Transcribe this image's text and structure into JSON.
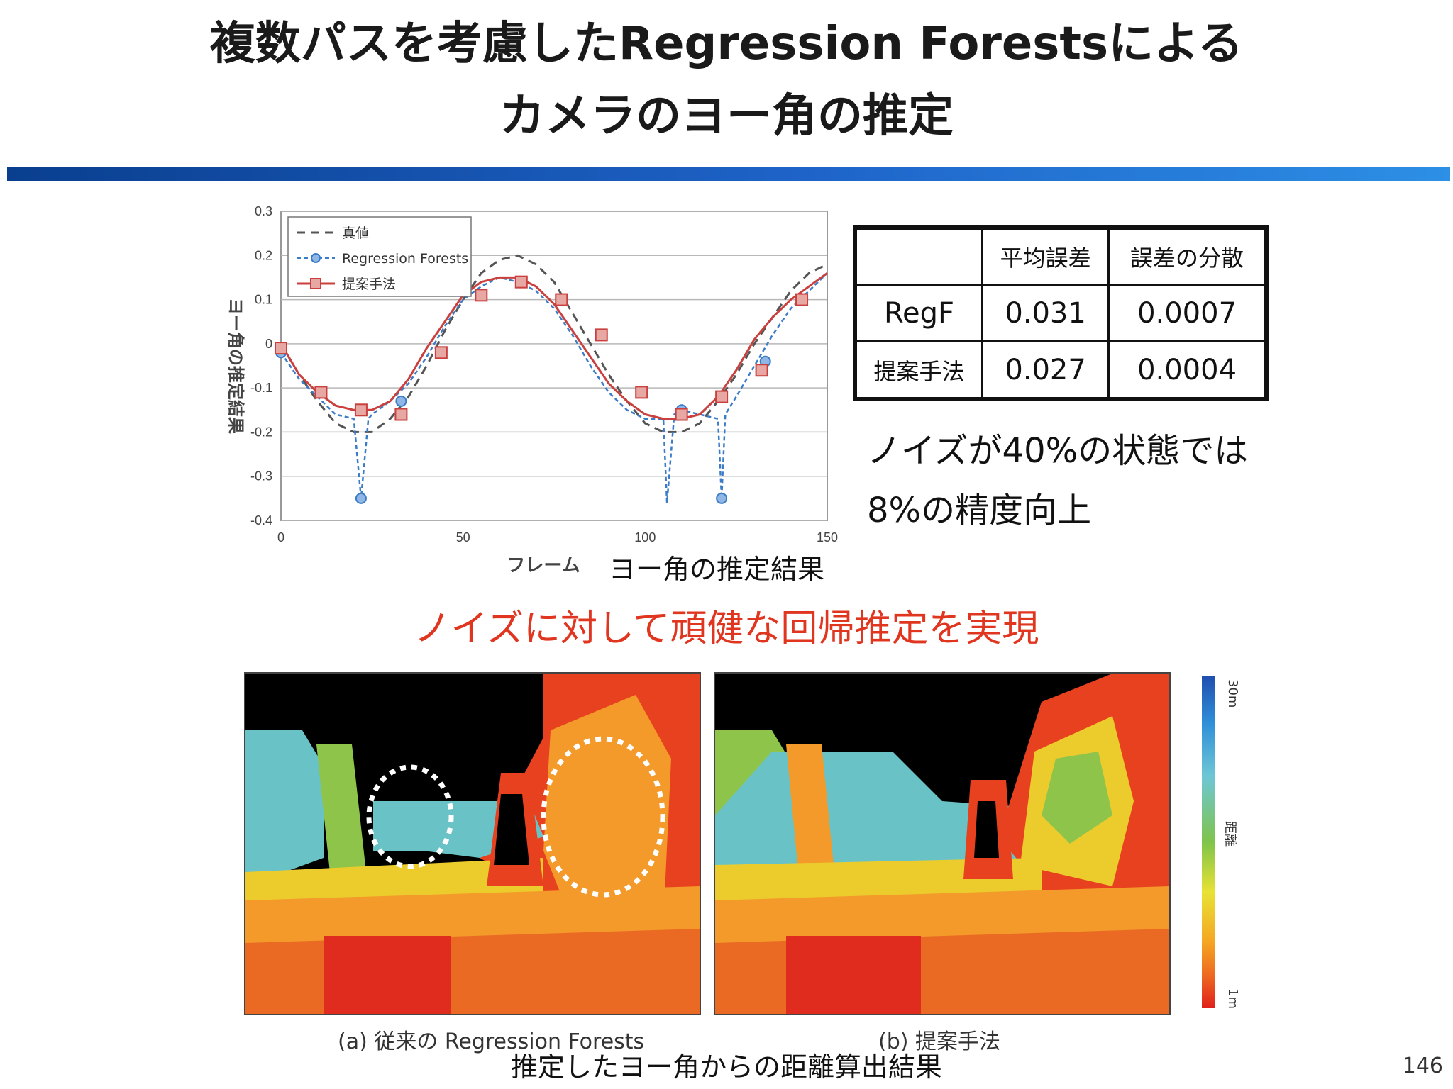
{
  "slide": {
    "title_line1": "複数パスを考慮したRegression Forestsによる",
    "title_line2": "カメラのヨー角の推定",
    "page_number": "146",
    "emphasis": "ノイズに対して頑健な回帰推定を実現",
    "chart_caption": "ヨー角の推定結果",
    "image_caption": "推定したヨー角からの距離算出結果",
    "note_line1": "ノイズが40%の状態では",
    "note_line2": "8%の精度向上"
  },
  "table": {
    "headers": [
      "",
      "平均誤差",
      "誤差の分散"
    ],
    "rows": [
      {
        "method": "RegF",
        "mean_error": "0.031",
        "variance": "0.0007"
      },
      {
        "method": "提案手法",
        "mean_error": "0.027",
        "variance": "0.0004"
      }
    ]
  },
  "depth_images": {
    "left_label": "(a) 従来の Regression Forests",
    "right_label": "(b) 提案手法",
    "colorbar_top": "30m",
    "colorbar_mid": "距離",
    "colorbar_bottom": "1m"
  },
  "chart_data": {
    "type": "line",
    "xlabel": "フレーム",
    "ylabel": "ヨー角の推定結果",
    "xlim": [
      0,
      150
    ],
    "ylim": [
      -0.4,
      0.3
    ],
    "xticks": [
      "0",
      "50",
      "100",
      "150"
    ],
    "yticks": [
      "0.3",
      "0.2",
      "0.1",
      "0",
      "-0.1",
      "-0.2",
      "-0.3",
      "-0.4"
    ],
    "grid": true,
    "legend_position": "top-left",
    "series": [
      {
        "name": "真値",
        "color": "#555555",
        "style": "dashed",
        "x": [
          0,
          5,
          10,
          15,
          20,
          25,
          30,
          35,
          40,
          45,
          50,
          55,
          60,
          65,
          70,
          75,
          80,
          85,
          90,
          95,
          100,
          105,
          110,
          115,
          120,
          125,
          130,
          135,
          140,
          145,
          150
        ],
        "y": [
          0.0,
          -0.07,
          -0.13,
          -0.18,
          -0.2,
          -0.2,
          -0.17,
          -0.12,
          -0.05,
          0.03,
          0.1,
          0.16,
          0.19,
          0.2,
          0.18,
          0.14,
          0.07,
          0.0,
          -0.07,
          -0.13,
          -0.18,
          -0.2,
          -0.2,
          -0.18,
          -0.13,
          -0.07,
          0.0,
          0.06,
          0.12,
          0.16,
          0.18
        ]
      },
      {
        "name": "Regression Forests",
        "color": "#3a7cc7",
        "style": "dashed-marker",
        "x": [
          0,
          5,
          10,
          15,
          20,
          22,
          24,
          25,
          30,
          35,
          40,
          45,
          50,
          55,
          60,
          65,
          70,
          75,
          80,
          85,
          90,
          95,
          100,
          105,
          106,
          108,
          110,
          115,
          120,
          121,
          122,
          125,
          130,
          135,
          140,
          145,
          150
        ],
        "y": [
          -0.02,
          -0.08,
          -0.12,
          -0.16,
          -0.17,
          -0.35,
          -0.17,
          -0.16,
          -0.13,
          -0.09,
          -0.03,
          0.04,
          0.1,
          0.13,
          0.15,
          0.14,
          0.12,
          0.08,
          0.02,
          -0.05,
          -0.11,
          -0.15,
          -0.17,
          -0.17,
          -0.36,
          -0.16,
          -0.15,
          -0.16,
          -0.17,
          -0.35,
          -0.16,
          -0.12,
          -0.05,
          0.02,
          0.08,
          0.12,
          0.16
        ],
        "markers_x": [
          0,
          22,
          33,
          110,
          121,
          133
        ],
        "markers_y": [
          -0.02,
          -0.35,
          -0.13,
          -0.15,
          -0.35,
          -0.04
        ]
      },
      {
        "name": "提案手法",
        "color": "#c9403e",
        "style": "solid-marker",
        "x": [
          0,
          5,
          10,
          15,
          20,
          25,
          30,
          35,
          40,
          45,
          50,
          55,
          60,
          65,
          70,
          75,
          80,
          85,
          90,
          95,
          100,
          105,
          110,
          115,
          120,
          125,
          130,
          135,
          140,
          145,
          150
        ],
        "y": [
          0.0,
          -0.07,
          -0.11,
          -0.14,
          -0.15,
          -0.15,
          -0.13,
          -0.08,
          -0.01,
          0.05,
          0.11,
          0.14,
          0.15,
          0.15,
          0.13,
          0.09,
          0.03,
          -0.03,
          -0.09,
          -0.13,
          -0.16,
          -0.17,
          -0.17,
          -0.16,
          -0.12,
          -0.06,
          0.01,
          0.06,
          0.1,
          0.13,
          0.16
        ],
        "markers_x": [
          0,
          11,
          22,
          33,
          44,
          55,
          66,
          77,
          88,
          99,
          110,
          121,
          132,
          143
        ],
        "markers_y": [
          -0.01,
          -0.11,
          -0.15,
          -0.16,
          -0.02,
          0.11,
          0.14,
          0.1,
          0.02,
          -0.11,
          -0.16,
          -0.12,
          -0.06,
          0.1
        ]
      }
    ]
  }
}
